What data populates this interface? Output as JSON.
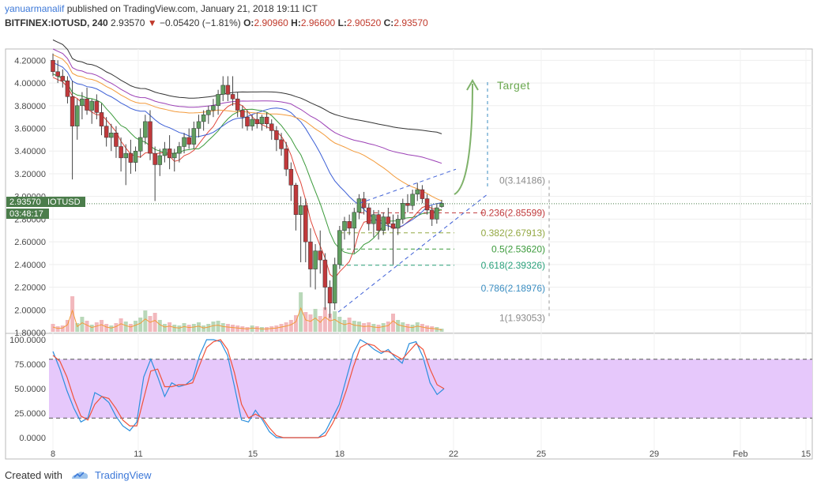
{
  "header": {
    "author": "yanuarmanalif",
    "published": "published on TradingView.com, January 21, 2018 19:11 ICT"
  },
  "symbol_line": {
    "symbol": "BITFINEX:IOTUSD, 240",
    "last": "2.93570",
    "arrow": "▼",
    "change": "−0.05420 (−1.81%)",
    "open_label": "O:",
    "open": "2.90960",
    "high_label": "H:",
    "high": "2.96600",
    "low_label": "L:",
    "low": "2.90520",
    "close_label": "C:",
    "close": "2.93570"
  },
  "price_badge": {
    "price": "2.93570",
    "symbol": "IOTUSD",
    "countdown": "03:48:17"
  },
  "footer": {
    "created_with": "Created with",
    "brand": "TradingView"
  },
  "colors": {
    "up": "#5f9e5f",
    "down": "#c0393b",
    "vol_up": "#b9d8b9",
    "vol_down": "#f2b8bd",
    "rsi_band": "#e6c8fb",
    "k_line": "#2b8fde",
    "d_line": "#f0523a"
  },
  "chart_data": [
    {
      "type": "candlestick",
      "title": "",
      "ylim": [
        1.8,
        4.3
      ],
      "y_tick_labels": [
        "1.80000",
        "2.00000",
        "2.20000",
        "2.40000",
        "2.60000",
        "2.80000",
        "3.00000",
        "3.20000",
        "3.40000",
        "3.60000",
        "3.80000",
        "4.00000",
        "4.20000"
      ],
      "x_tick_labels": [
        "8",
        "11",
        "15",
        "18",
        "22",
        "25",
        "29",
        "Feb",
        "15"
      ],
      "annotation": "Target",
      "fib_levels": [
        {
          "label": "0(3.14186)",
          "value": 3.14186,
          "color": "#8a8a8a"
        },
        {
          "label": "0.236(2.85599)",
          "value": 2.85599,
          "color": "#c0393b"
        },
        {
          "label": "0.382(2.67913)",
          "value": 2.67913,
          "color": "#93a842"
        },
        {
          "label": "0.5(2.53620)",
          "value": 2.5362,
          "color": "#3c9b3c"
        },
        {
          "label": "0.618(2.39326)",
          "value": 2.39326,
          "color": "#2aa17b"
        },
        {
          "label": "0.786(2.18976)",
          "value": 2.18976,
          "color": "#3b8ec2"
        },
        {
          "label": "1(1.93053)",
          "value": 1.93053,
          "color": "#8a8a8a"
        }
      ],
      "candles": [
        [
          4.2,
          4.26,
          4.06,
          4.1
        ],
        [
          4.1,
          4.2,
          4.0,
          4.06
        ],
        [
          4.06,
          4.12,
          3.96,
          4.02
        ],
        [
          4.02,
          4.06,
          3.82,
          3.88
        ],
        [
          3.88,
          4.02,
          3.15,
          3.62
        ],
        [
          3.62,
          3.86,
          3.5,
          3.8
        ],
        [
          3.8,
          3.92,
          3.68,
          3.86
        ],
        [
          3.86,
          3.96,
          3.72,
          3.76
        ],
        [
          3.76,
          3.86,
          3.64,
          3.84
        ],
        [
          3.84,
          3.9,
          3.68,
          3.74
        ],
        [
          3.74,
          3.82,
          3.54,
          3.62
        ],
        [
          3.62,
          3.7,
          3.44,
          3.52
        ],
        [
          3.52,
          3.64,
          3.4,
          3.56
        ],
        [
          3.56,
          3.62,
          3.34,
          3.44
        ],
        [
          3.44,
          3.52,
          3.22,
          3.34
        ],
        [
          3.34,
          3.46,
          3.1,
          3.38
        ],
        [
          3.38,
          3.5,
          3.2,
          3.3
        ],
        [
          3.3,
          3.44,
          3.22,
          3.4
        ],
        [
          3.4,
          3.6,
          3.34,
          3.52
        ],
        [
          3.52,
          3.72,
          3.46,
          3.66
        ],
        [
          3.66,
          3.76,
          3.32,
          3.38
        ],
        [
          3.38,
          3.44,
          2.96,
          3.28
        ],
        [
          3.28,
          3.42,
          3.18,
          3.36
        ],
        [
          3.36,
          3.48,
          3.3,
          3.42
        ],
        [
          3.42,
          3.54,
          3.24,
          3.34
        ],
        [
          3.34,
          3.42,
          3.22,
          3.38
        ],
        [
          3.38,
          3.48,
          3.3,
          3.44
        ],
        [
          3.44,
          3.56,
          3.38,
          3.52
        ],
        [
          3.52,
          3.6,
          3.42,
          3.46
        ],
        [
          3.46,
          3.66,
          3.42,
          3.6
        ],
        [
          3.6,
          3.72,
          3.52,
          3.66
        ],
        [
          3.66,
          3.76,
          3.58,
          3.72
        ],
        [
          3.72,
          3.8,
          3.64,
          3.76
        ],
        [
          3.76,
          3.86,
          3.7,
          3.8
        ],
        [
          3.8,
          3.94,
          3.72,
          3.9
        ],
        [
          3.9,
          4.06,
          3.84,
          3.98
        ],
        [
          3.98,
          4.06,
          3.84,
          3.9
        ],
        [
          3.9,
          4.06,
          3.8,
          3.86
        ],
        [
          3.86,
          3.92,
          3.7,
          3.76
        ],
        [
          3.76,
          3.8,
          3.6,
          3.7
        ],
        [
          3.7,
          3.76,
          3.58,
          3.62
        ],
        [
          3.62,
          3.72,
          3.58,
          3.68
        ],
        [
          3.68,
          3.74,
          3.6,
          3.64
        ],
        [
          3.64,
          3.72,
          3.58,
          3.7
        ],
        [
          3.7,
          3.74,
          3.6,
          3.64
        ],
        [
          3.64,
          3.68,
          3.5,
          3.58
        ],
        [
          3.58,
          3.62,
          3.4,
          3.5
        ],
        [
          3.5,
          3.56,
          3.36,
          3.42
        ],
        [
          3.42,
          3.48,
          3.18,
          3.24
        ],
        [
          3.24,
          3.3,
          2.96,
          3.1
        ],
        [
          3.1,
          3.12,
          2.7,
          2.84
        ],
        [
          2.84,
          3.0,
          2.42,
          2.92
        ],
        [
          2.92,
          2.98,
          2.42,
          2.6
        ],
        [
          2.6,
          2.72,
          2.2,
          2.36
        ],
        [
          2.36,
          2.58,
          2.18,
          2.52
        ],
        [
          2.52,
          2.7,
          2.32,
          2.44
        ],
        [
          2.44,
          2.5,
          2.0,
          2.2
        ],
        [
          2.2,
          2.26,
          1.93,
          2.06
        ],
        [
          2.06,
          2.46,
          2.0,
          2.4
        ],
        [
          2.4,
          2.74,
          2.36,
          2.7
        ],
        [
          2.7,
          2.82,
          2.62,
          2.78
        ],
        [
          2.78,
          2.84,
          2.66,
          2.72
        ],
        [
          2.72,
          2.9,
          2.5,
          2.86
        ],
        [
          2.86,
          3.02,
          2.8,
          2.98
        ],
        [
          2.98,
          3.04,
          2.84,
          2.9
        ],
        [
          2.9,
          2.94,
          2.7,
          2.76
        ],
        [
          2.76,
          2.88,
          2.64,
          2.84
        ],
        [
          2.84,
          2.88,
          2.62,
          2.7
        ],
        [
          2.7,
          2.86,
          2.66,
          2.82
        ],
        [
          2.82,
          2.9,
          2.7,
          2.76
        ],
        [
          2.76,
          2.84,
          2.4,
          2.72
        ],
        [
          2.72,
          2.84,
          2.66,
          2.8
        ],
        [
          2.8,
          2.98,
          2.76,
          2.94
        ],
        [
          2.94,
          3.02,
          2.86,
          2.92
        ],
        [
          2.92,
          3.06,
          2.88,
          3.02
        ],
        [
          3.02,
          3.12,
          2.96,
          3.06
        ],
        [
          3.06,
          3.1,
          2.94,
          2.98
        ],
        [
          2.98,
          3.02,
          2.84,
          2.88
        ],
        [
          2.88,
          2.92,
          2.74,
          2.8
        ],
        [
          2.8,
          2.94,
          2.76,
          2.9
        ],
        [
          2.91,
          2.97,
          2.9,
          2.94
        ]
      ],
      "volume": [
        0.2,
        0.14,
        0.16,
        0.3,
        0.9,
        0.22,
        0.38,
        0.28,
        0.18,
        0.24,
        0.3,
        0.2,
        0.16,
        0.22,
        0.34,
        0.26,
        0.2,
        0.28,
        0.36,
        0.54,
        0.4,
        0.48,
        0.3,
        0.2,
        0.24,
        0.18,
        0.16,
        0.22,
        0.18,
        0.2,
        0.24,
        0.16,
        0.2,
        0.26,
        0.28,
        0.22,
        0.2,
        0.18,
        0.16,
        0.14,
        0.12,
        0.16,
        0.14,
        0.12,
        0.12,
        0.14,
        0.16,
        0.2,
        0.24,
        0.3,
        0.42,
        1.0,
        0.5,
        0.44,
        0.58,
        0.4,
        0.62,
        0.46,
        0.52,
        0.38,
        0.3,
        0.36,
        0.28,
        0.26,
        0.22,
        0.24,
        0.2,
        0.18,
        0.22,
        0.26,
        0.46,
        0.3,
        0.24,
        0.2,
        0.18,
        0.24,
        0.2,
        0.16,
        0.14,
        0.12,
        0.08
      ]
    },
    {
      "type": "line",
      "title": "",
      "ylim": [
        0,
        100
      ],
      "y_tick_labels": [
        "0.0000",
        "25.0000",
        "50.0000",
        "75.0000",
        "100.0000"
      ],
      "overbought": 80,
      "oversold": 20,
      "series": [
        {
          "color": "#2b8fde",
          "values": [
            88,
            70,
            48,
            30,
            16,
            20,
            46,
            42,
            36,
            22,
            12,
            7,
            16,
            62,
            80,
            62,
            42,
            56,
            52,
            54,
            60,
            84,
            100,
            100,
            98,
            84,
            52,
            18,
            16,
            28,
            18,
            6,
            0,
            0,
            0,
            0,
            0,
            0,
            0,
            6,
            20,
            34,
            60,
            86,
            100,
            96,
            90,
            86,
            90,
            82,
            76,
            96,
            98,
            82,
            56,
            44,
            50
          ]
        },
        {
          "color": "#f0523a",
          "values": [
            84,
            78,
            62,
            40,
            22,
            18,
            34,
            42,
            40,
            30,
            18,
            12,
            12,
            40,
            68,
            70,
            52,
            52,
            54,
            54,
            56,
            74,
            92,
            98,
            100,
            90,
            66,
            34,
            20,
            24,
            20,
            10,
            2,
            0,
            0,
            0,
            0,
            0,
            0,
            2,
            14,
            28,
            48,
            72,
            92,
            96,
            94,
            88,
            88,
            84,
            80,
            88,
            96,
            90,
            70,
            54,
            50
          ]
        }
      ]
    }
  ]
}
